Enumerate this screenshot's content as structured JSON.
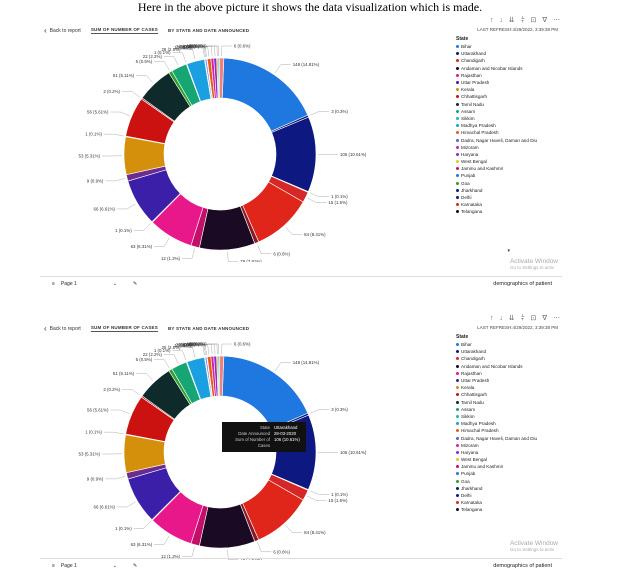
{
  "caption": "Here in the above picture it shows the data visualization which is made.",
  "report": {
    "back_label": "Back to report",
    "tab_active": "SUM OF NUMBER OF CASES",
    "tab_other": "BY STATE AND DATE ANNOUNCED",
    "refresh_1": "LAST REFRESH:4/29/2022, 3:39:38 PM",
    "refresh_2": "LAST REFRESH:4/29/2022, 3:39:38 PM",
    "page_label": "Page 1",
    "page_tab": "demographics of patient",
    "toolbar_icons": "↑ ↓ ⇊ ⫩ ⊡ ∇ ⋯",
    "watermark": "Activate Window",
    "watermark_sub": "Go to Settings to activ"
  },
  "legend": {
    "title": "State",
    "more": "▾"
  },
  "tooltip": {
    "state_key": "State",
    "state_val": "Uttarakhand",
    "date_key": "Date Announced",
    "date_val": "28-03-2020",
    "sum_key": "Sum of Number of Cases",
    "sum_val": "106 (10.61%)"
  },
  "chart_data": {
    "type": "pie",
    "donut": true,
    "title": "",
    "slices": [
      {
        "label": "148 (14.81%)",
        "value": 148,
        "color": "#1f77e0"
      },
      {
        "label": "3 (0.3%)",
        "value": 3,
        "color": "#0a1f6e"
      },
      {
        "label": "106 (10.61%)",
        "value": 106,
        "color": "#0d1980"
      },
      {
        "label": "1 (0.1%)",
        "value": 1,
        "color": "#ff7f0e"
      },
      {
        "label": "15 (1.5%)",
        "value": 15,
        "color": "#d62728"
      },
      {
        "label": "84 (8.41%)",
        "value": 84,
        "color": "#e0261a"
      },
      {
        "label": "6 (0.6%)",
        "value": 6,
        "color": "#8a1a2a"
      },
      {
        "label": "78 (7.81%)",
        "value": 78,
        "color": "#1a0a24"
      },
      {
        "label": "12 (1.2%)",
        "value": 12,
        "color": "#c40f6a"
      },
      {
        "label": "63 (6.31%)",
        "value": 63,
        "color": "#e8188a"
      },
      {
        "label": "1 (0.1%)",
        "value": 1,
        "color": "#7a3fb0"
      },
      {
        "label": "66 (6.61%)",
        "value": 66,
        "color": "#3b1fa8"
      },
      {
        "label": "9 (0.9%)",
        "value": 9,
        "color": "#6b2b8f"
      },
      {
        "label": "53 (5.31%)",
        "value": 53,
        "color": "#d4900a"
      },
      {
        "label": "1 (0.1%)",
        "value": 1,
        "color": "#e8b020"
      },
      {
        "label": "56 (5.61%)",
        "value": 56,
        "color": "#cc1111"
      },
      {
        "label": "2 (0.2%)",
        "value": 2,
        "color": "#b21a1a"
      },
      {
        "label": "51 (5.11%)",
        "value": 51,
        "color": "#0e2a2a"
      },
      {
        "label": "5 (0.5%)",
        "value": 5,
        "color": "#2ca02c"
      },
      {
        "label": "22 (2.2%)",
        "value": 22,
        "color": "#17a673"
      },
      {
        "label": "1 (0.1%)",
        "value": 1,
        "color": "#19b8b8"
      },
      {
        "label": "25 (2.5%)",
        "value": 25,
        "color": "#1aa0e0"
      },
      {
        "label": "1 (0.1%)",
        "value": 1,
        "color": "#3fc0ff"
      },
      {
        "label": "2 (0.2%)",
        "value": 2,
        "color": "#5f5fd0"
      },
      {
        "label": "1 (0.1%)",
        "value": 1,
        "color": "#7fb0ff"
      },
      {
        "label": "5 (0.5%)",
        "value": 5,
        "color": "#e85a1a"
      },
      {
        "label": "4 (0.4%)",
        "value": 4,
        "color": "#d4249a"
      },
      {
        "label": "4 (0.4%)",
        "value": 4,
        "color": "#8b2bd4"
      },
      {
        "label": "2 (0.2%)",
        "value": 2,
        "color": "#f0c020"
      },
      {
        "label": "2 (0.2%)",
        "value": 2,
        "color": "#20c0a0"
      },
      {
        "label": "6 (0.6%)",
        "value": 6,
        "color": "#f08080"
      }
    ],
    "legend": [
      {
        "name": "Bihar",
        "color": "#1f77e0"
      },
      {
        "name": "Uttarakhand",
        "color": "#0d1980"
      },
      {
        "name": "Chandigarh",
        "color": "#e0261a"
      },
      {
        "name": "Andaman and Nicobar Islands",
        "color": "#1a0a24"
      },
      {
        "name": "Rajasthan",
        "color": "#e8188a"
      },
      {
        "name": "Uttar Pradesh",
        "color": "#3b1fa8"
      },
      {
        "name": "Kerala",
        "color": "#d4900a"
      },
      {
        "name": "Chhattisgarh",
        "color": "#cc1111"
      },
      {
        "name": "Tamil Nadu",
        "color": "#0e2a2a"
      },
      {
        "name": "Assam",
        "color": "#17a673"
      },
      {
        "name": "Sikkim",
        "color": "#19b8b8"
      },
      {
        "name": "Madhya Pradesh",
        "color": "#1aa0e0"
      },
      {
        "name": "Himachal Pradesh",
        "color": "#e85a1a"
      },
      {
        "name": "Dadra, Nagar Haveli, Daman and Diu",
        "color": "#5f5fd0"
      },
      {
        "name": "Mizoram",
        "color": "#d4249a"
      },
      {
        "name": "Haryana",
        "color": "#8b2bd4"
      },
      {
        "name": "West Bengal",
        "color": "#f0c020"
      },
      {
        "name": "Jammu and Kashmir",
        "color": "#c40f6a"
      },
      {
        "name": "Punjab",
        "color": "#1f77e0"
      },
      {
        "name": "Goa",
        "color": "#2ca02c"
      },
      {
        "name": "Jharkhand",
        "color": "#0a1f6e"
      },
      {
        "name": "Delhi",
        "color": "#0d1980"
      },
      {
        "name": "Karnataka",
        "color": "#e0261a"
      },
      {
        "name": "Telangana",
        "color": "#1a0a24"
      }
    ]
  }
}
